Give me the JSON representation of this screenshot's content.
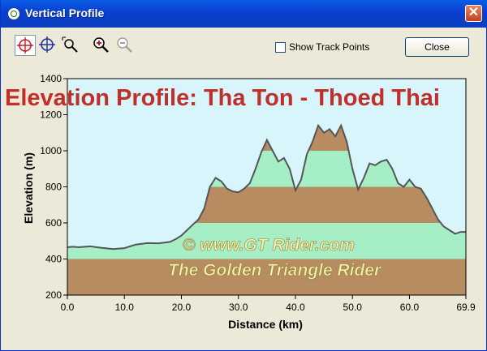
{
  "window": {
    "title": "Vertical Profile",
    "close_glyph": "✕"
  },
  "toolbar": {
    "tools": [
      {
        "name": "pointer-crosshair-icon",
        "active": true
      },
      {
        "name": "crosshair-icon",
        "active": false
      },
      {
        "name": "zoom-select-icon",
        "active": false
      },
      {
        "name": "zoom-in-icon",
        "active": false
      },
      {
        "name": "zoom-out-icon",
        "active": false
      }
    ],
    "show_track_points_label": "Show Track Points",
    "show_track_points_checked": false,
    "close_label": "Close"
  },
  "watermark": {
    "line1": "©  www.GT Rider.com",
    "line2": "The Golden Triangle Rider"
  },
  "colors": {
    "sky": "#d7f5fb",
    "band_brown": "#b68c60",
    "band_green": "#a6efc6",
    "line": "#555555",
    "title": "#c0302b"
  },
  "chart_data": {
    "type": "area",
    "title": "Elevation Profile: Tha Ton - Thoed Thai",
    "xlabel": "Distance  (km)",
    "ylabel": "Elevation  (m)",
    "xlim": [
      0,
      69.9
    ],
    "ylim": [
      200,
      1400
    ],
    "x_ticks": [
      "0.0",
      "10.0",
      "20.0",
      "30.0",
      "40.0",
      "50.0",
      "60.0",
      "69.9"
    ],
    "x_tick_values": [
      0,
      10,
      20,
      30,
      40,
      50,
      60,
      69.9
    ],
    "y_ticks": [
      200,
      400,
      600,
      800,
      1000,
      1200,
      1400
    ],
    "bands": [
      [
        200,
        400
      ],
      [
        400,
        600
      ],
      [
        600,
        800
      ],
      [
        800,
        1000
      ],
      [
        1000,
        1200
      ]
    ],
    "x": [
      0,
      1,
      2,
      4,
      6,
      8,
      10,
      12,
      14,
      16,
      18,
      19,
      20,
      21,
      22,
      23,
      24,
      25,
      26,
      27,
      28,
      29,
      30,
      31,
      32,
      33,
      34,
      35,
      36,
      37,
      38,
      39,
      40,
      41,
      42,
      43,
      44,
      45,
      46,
      47,
      48,
      49,
      50,
      51,
      52,
      53,
      54,
      55,
      56,
      57,
      58,
      59,
      60,
      61,
      62,
      63,
      64,
      65,
      66,
      67,
      68,
      69,
      69.9
    ],
    "y": [
      465,
      468,
      465,
      470,
      462,
      455,
      460,
      480,
      488,
      487,
      495,
      510,
      530,
      560,
      590,
      620,
      680,
      800,
      850,
      830,
      790,
      775,
      770,
      790,
      820,
      900,
      990,
      1060,
      1000,
      940,
      960,
      900,
      780,
      840,
      980,
      1050,
      1140,
      1100,
      1120,
      1080,
      1140,
      1050,
      900,
      785,
      850,
      930,
      920,
      940,
      950,
      900,
      820,
      800,
      840,
      800,
      790,
      740,
      680,
      620,
      580,
      560,
      540,
      550,
      550
    ]
  }
}
